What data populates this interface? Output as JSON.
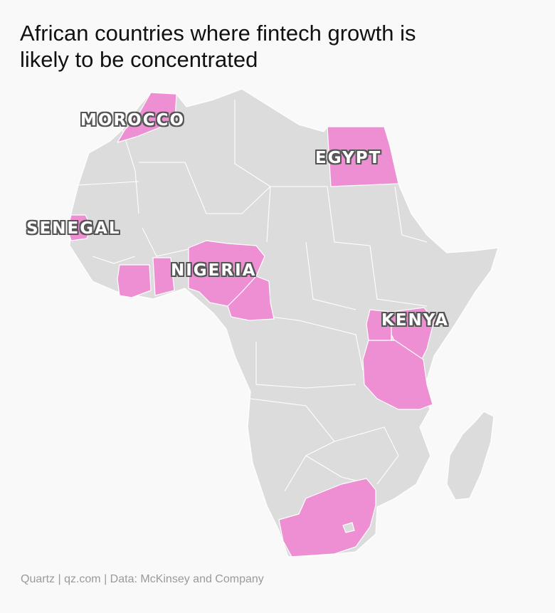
{
  "title": {
    "line1": "African countries where fintech growth is",
    "line2": "likely to be concentrated"
  },
  "highlight_color": "#ee8fd4",
  "base_color": "#dcdcdc",
  "highlighted_countries": [
    "Morocco",
    "Egypt",
    "Senegal",
    "Nigeria",
    "Kenya",
    "Tanzania",
    "Ivory Coast",
    "Ghana",
    "Cameroon",
    "South Africa"
  ],
  "labels": {
    "morocco": "MOROCCO",
    "egypt": "EGYPT",
    "senegal": "SENEGAL",
    "nigeria": "NIGERIA",
    "kenya": "KENYA"
  },
  "footer": "Quartz | qz.com | Data: McKinsey and Company"
}
